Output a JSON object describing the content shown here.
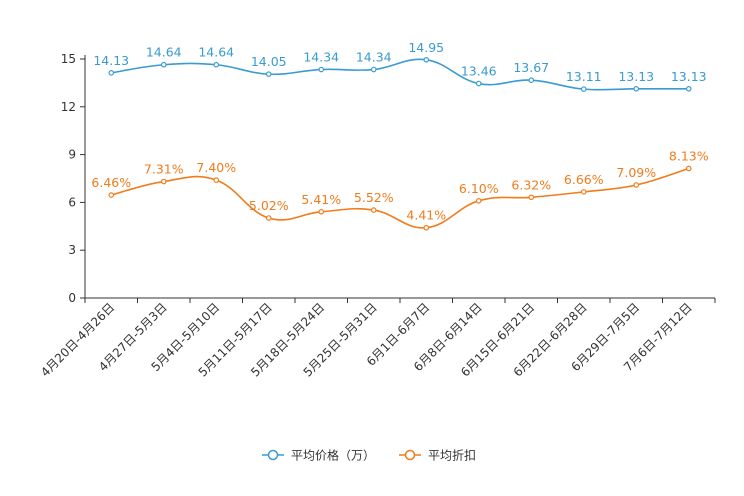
{
  "chart_data": {
    "type": "line",
    "categories": [
      "4月20日-4月26日",
      "4月27日-5月3日",
      "5月4日-5月10日",
      "5月11日-5月17日",
      "5月18日-5月24日",
      "5月25日-5月31日",
      "6月1日-6月7日",
      "6月8日-6月14日",
      "6月15日-6月21日",
      "6月22日-6月28日",
      "6月29日-7月5日",
      "7月6日-7月12日"
    ],
    "series": [
      {
        "name": "平均价格（万）",
        "color": "#3a9bd0",
        "values": [
          14.13,
          14.64,
          14.64,
          14.05,
          14.34,
          14.34,
          14.95,
          13.46,
          13.67,
          13.11,
          13.13,
          13.13
        ],
        "labels": [
          "14.13",
          "14.64",
          "14.64",
          "14.05",
          "14.34",
          "14.34",
          "14.95",
          "13.46",
          "13.67",
          "13.11",
          "13.13",
          "13.13"
        ]
      },
      {
        "name": "平均折扣",
        "color": "#f07c1c",
        "values": [
          6.46,
          7.31,
          7.4,
          5.02,
          5.41,
          5.52,
          4.41,
          6.1,
          6.32,
          6.66,
          7.09,
          8.13
        ],
        "labels": [
          "6.46%",
          "7.31%",
          "7.40%",
          "5.02%",
          "5.41%",
          "5.52%",
          "4.41%",
          "6.10%",
          "6.32%",
          "6.66%",
          "7.09%",
          "8.13%"
        ]
      }
    ],
    "yticks": [
      "0",
      "3",
      "6",
      "9",
      "12",
      "15"
    ],
    "ylim": [
      0,
      15
    ],
    "title": "",
    "xlabel": "",
    "ylabel": "",
    "legend_position": "bottom-center",
    "grid": false
  }
}
